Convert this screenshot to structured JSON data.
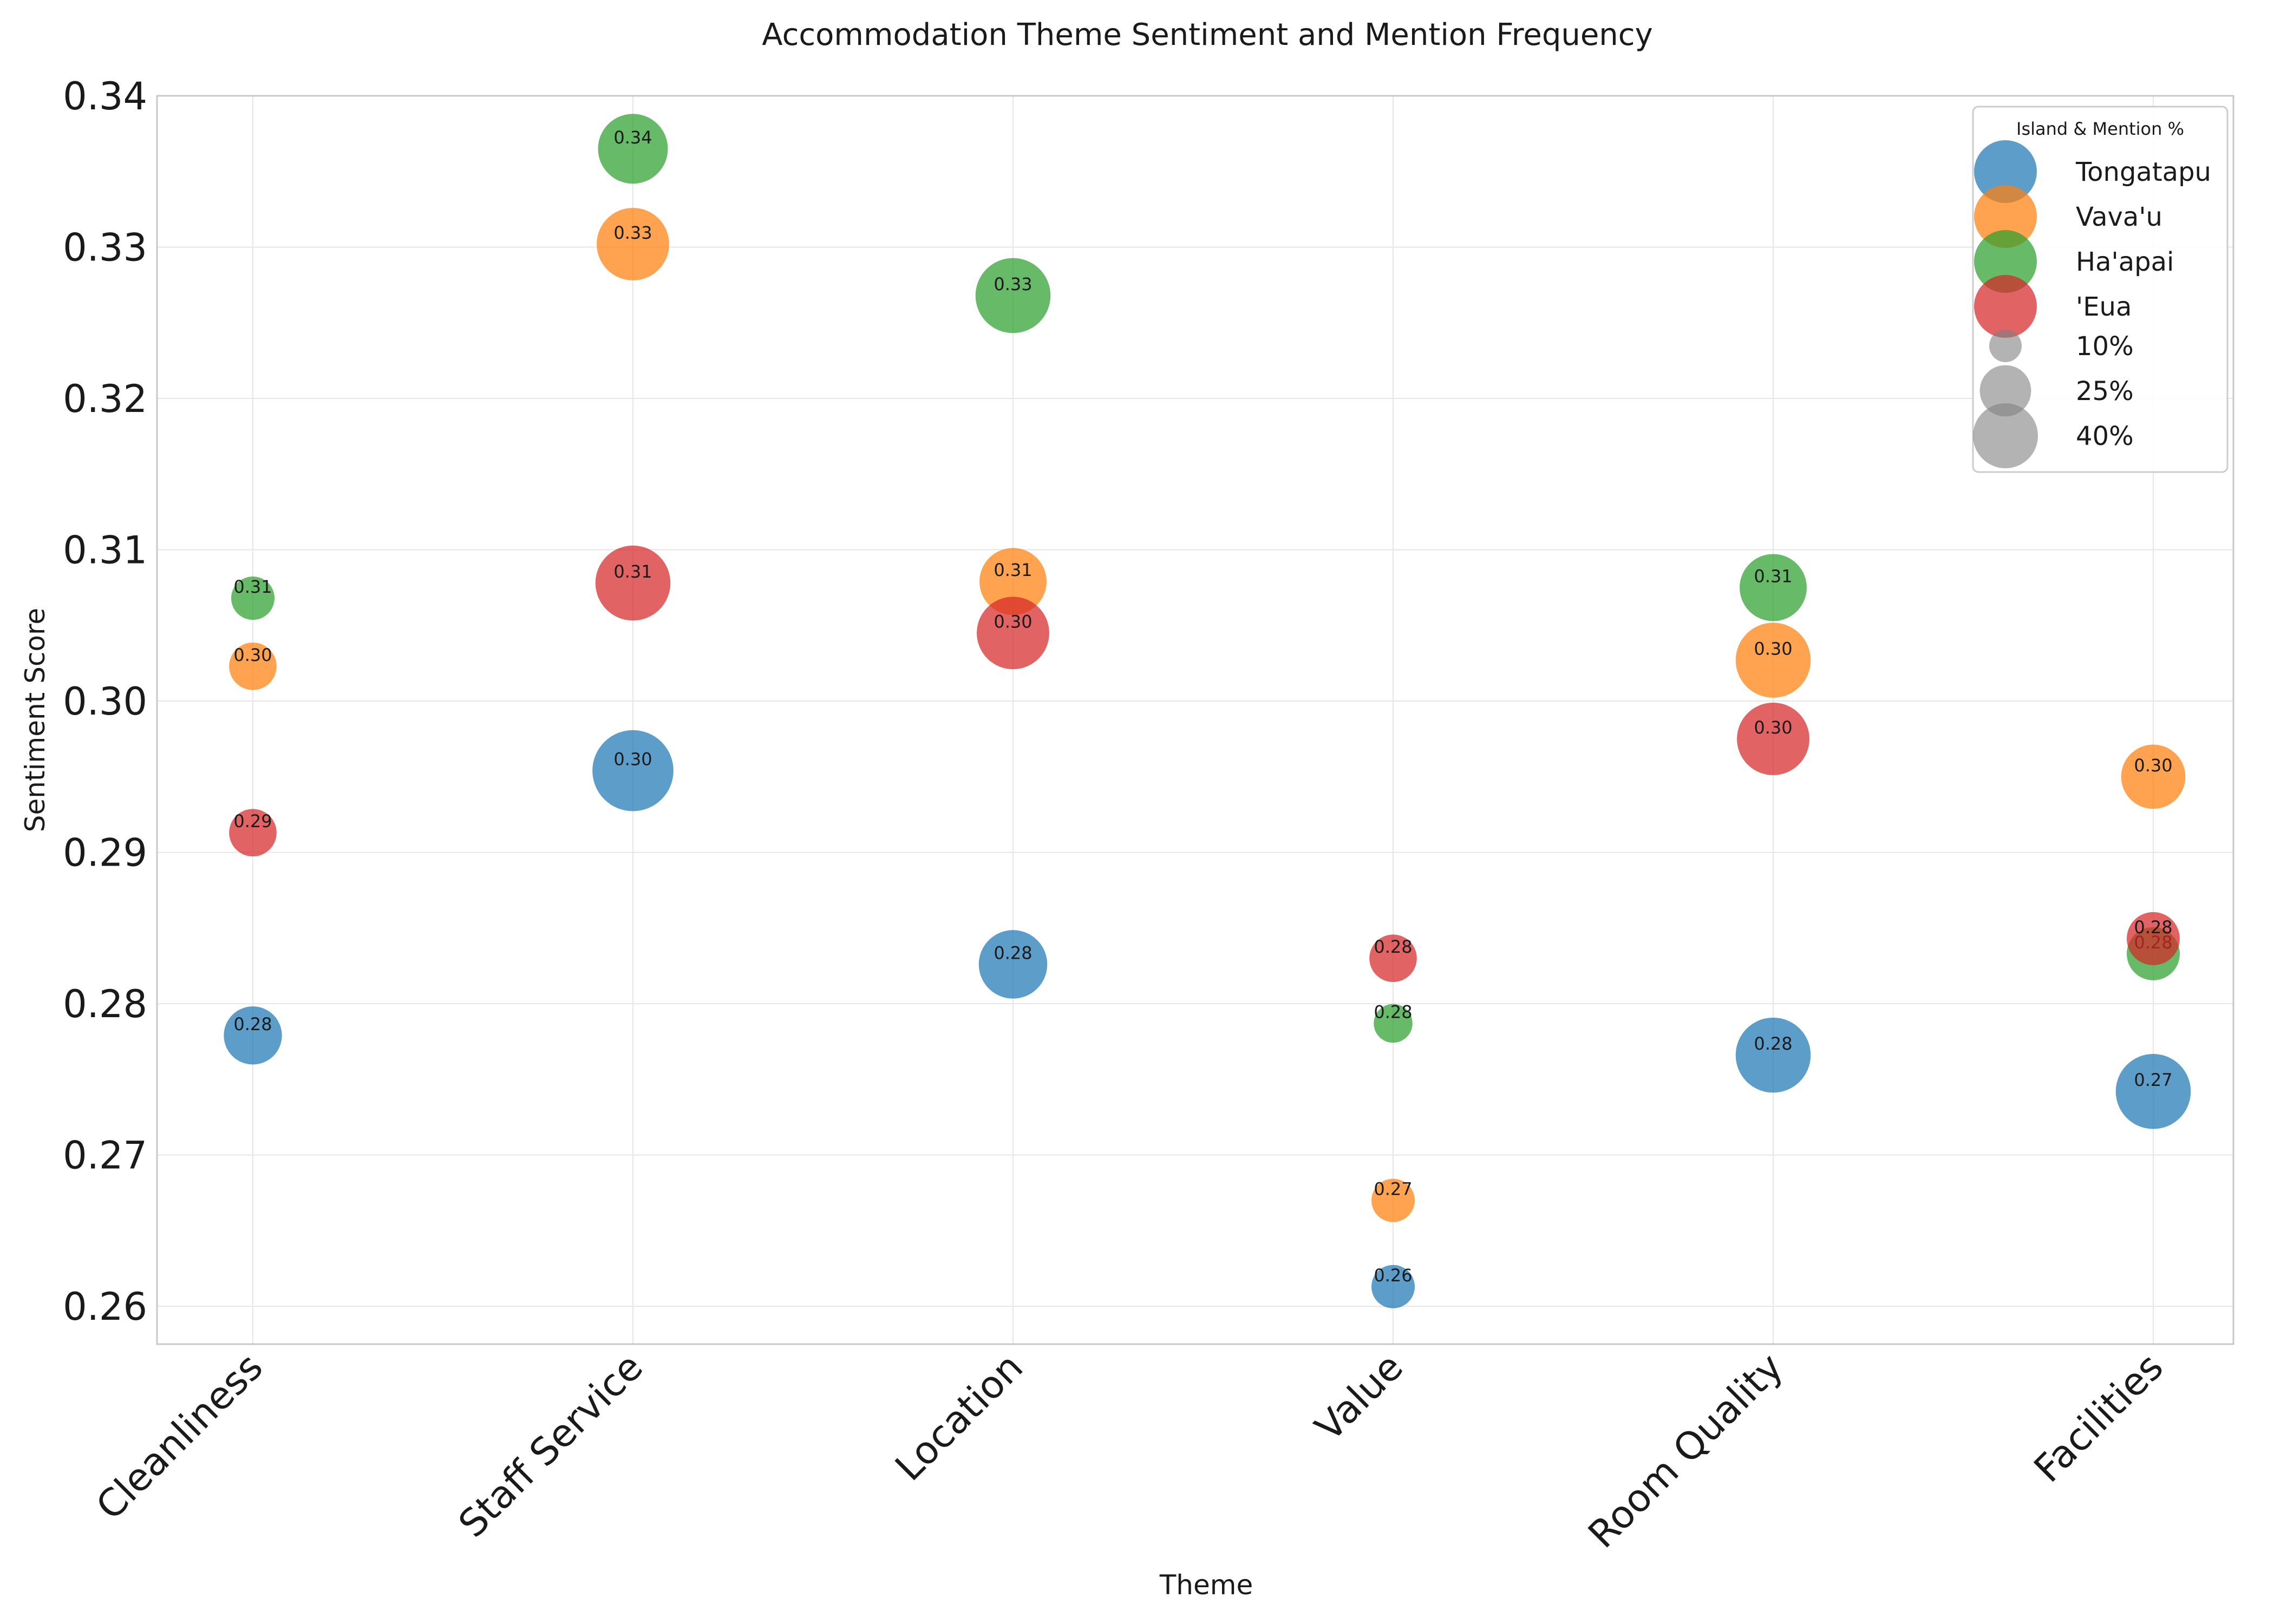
{
  "chart_data": {
    "type": "scatter",
    "title": "Accommodation Theme Sentiment and Mention Frequency",
    "xlabel": "Theme",
    "ylabel": "Sentiment Score",
    "categories": [
      "Cleanliness",
      "Staff Service",
      "Location",
      "Value",
      "Room Quality",
      "Facilities"
    ],
    "ylim": [
      0.2575,
      0.34
    ],
    "yticks": [
      "0.26",
      "0.27",
      "0.28",
      "0.29",
      "0.30",
      "0.31",
      "0.32",
      "0.33",
      "0.34"
    ],
    "grid": true,
    "legend": {
      "title": "Island & Mention %",
      "position": "top-right",
      "size_entries": [
        {
          "label": "10%",
          "mention_pct": 10
        },
        {
          "label": "25%",
          "mention_pct": 25
        },
        {
          "label": "40%",
          "mention_pct": 40
        }
      ]
    },
    "series": [
      {
        "name": "Tongatapu",
        "color": "#1f77b4",
        "values": [
          0.2779,
          0.2954,
          0.2826,
          0.2613,
          0.2766,
          0.2742
        ],
        "labels": [
          "0.28",
          "0.30",
          "0.28",
          "0.26",
          "0.28",
          "0.27"
        ],
        "mention_pct": [
          18,
          35,
          25,
          10,
          30,
          30
        ]
      },
      {
        "name": "Vava'u",
        "color": "#ff7f0e",
        "values": [
          0.3023,
          0.3302,
          0.3079,
          0.267,
          0.3027,
          0.295
        ],
        "labels": [
          "0.30",
          "0.33",
          "0.31",
          "0.27",
          "0.30",
          "0.30"
        ],
        "mention_pct": [
          12,
          28,
          24,
          10,
          30,
          22
        ]
      },
      {
        "name": "Ha'apai",
        "color": "#2ca02c",
        "values": [
          0.3068,
          0.3365,
          0.3268,
          0.2787,
          0.3075,
          0.2833
        ],
        "labels": [
          "0.31",
          "0.34",
          "0.33",
          "0.28",
          "0.31",
          "0.28"
        ],
        "mention_pct": [
          10,
          26,
          30,
          8,
          24,
          15
        ]
      },
      {
        "name": "'Eua",
        "color": "#d62728",
        "values": [
          0.2913,
          0.3078,
          0.3045,
          0.283,
          0.2975,
          0.2843
        ],
        "labels": [
          "0.29",
          "0.31",
          "0.30",
          "0.28",
          "0.30",
          "0.28"
        ],
        "mention_pct": [
          12,
          30,
          28,
          12,
          28,
          15
        ]
      }
    ]
  }
}
